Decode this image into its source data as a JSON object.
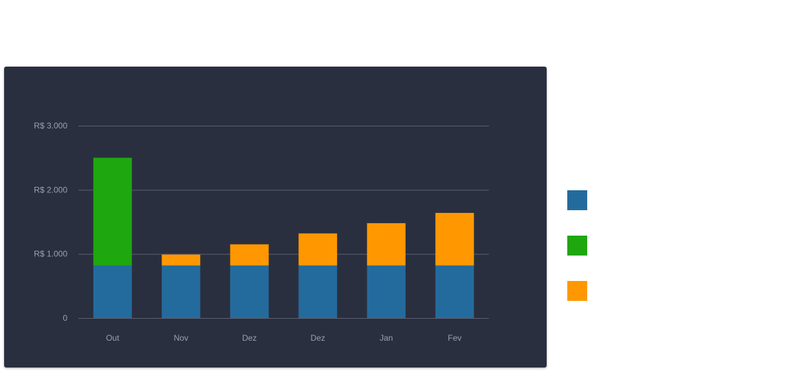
{
  "chart_data": {
    "type": "bar",
    "stacked": true,
    "categories": [
      "Out",
      "Nov",
      "Dez",
      "Dez",
      "Jan",
      "Fev"
    ],
    "series": [
      {
        "color": "#246b9d",
        "values": [
          820,
          820,
          820,
          820,
          820,
          820
        ]
      },
      {
        "color": "#1fa70f",
        "values": [
          1680,
          0,
          0,
          0,
          0,
          0
        ]
      },
      {
        "color": "#ff9800",
        "values": [
          0,
          170,
          330,
          500,
          660,
          820
        ]
      }
    ],
    "yticks": [
      {
        "value": 0,
        "label": "0"
      },
      {
        "value": 1000,
        "label": "R$ 1.000"
      },
      {
        "value": 2000,
        "label": "R$ 2.000"
      },
      {
        "value": 3000,
        "label": "R$ 3.000"
      }
    ],
    "ylim": [
      0,
      3000
    ],
    "grid": true,
    "legend_position": "right",
    "colors": {
      "background": "#2a2f3f",
      "gridline": "#5a6070",
      "tick_text": "#9aa0ad"
    }
  }
}
